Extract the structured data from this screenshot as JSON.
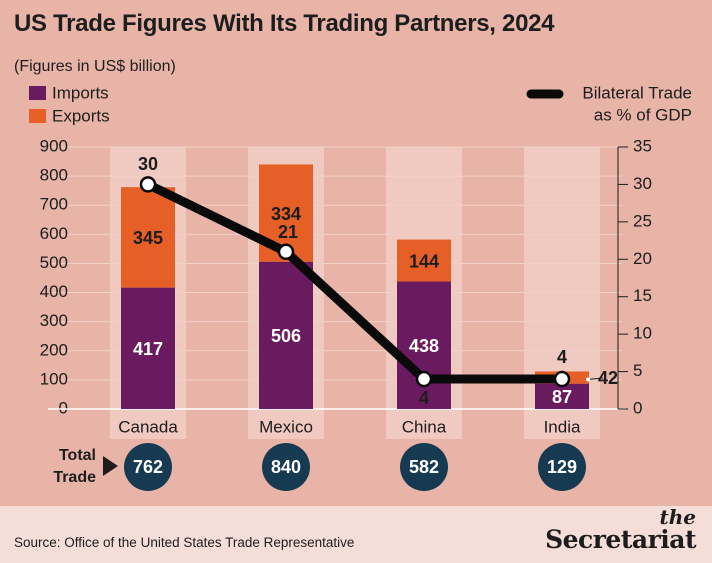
{
  "title": "US Trade Figures With Its Trading Partners, 2024",
  "subtitle": "(Figures in US$ billion)",
  "colors": {
    "background": "#e8b4a8",
    "imports": "#6a1a5e",
    "exports": "#e65f27",
    "line": "#0a0a0a",
    "badge": "#163a52",
    "column_band": "#f0c9c0",
    "footer": "#f4ded7"
  },
  "chart_data": {
    "type": "bar",
    "stacked": true,
    "categories": [
      "Canada",
      "Mexico",
      "China",
      "India"
    ],
    "series": [
      {
        "name": "Imports",
        "values": [
          417,
          506,
          438,
          87
        ]
      },
      {
        "name": "Exports",
        "values": [
          345,
          334,
          144,
          42
        ]
      }
    ],
    "line_series": {
      "name": "Bilateral Trade as % of GDP",
      "values": [
        30,
        21,
        4,
        4
      ],
      "axis": "right"
    },
    "totals_label": "Total Trade",
    "totals": [
      762,
      840,
      582,
      129
    ],
    "ylim_left": [
      0,
      900
    ],
    "yticks_left": [
      0,
      100,
      200,
      300,
      400,
      500,
      600,
      700,
      800,
      900
    ],
    "ylim_right": [
      0,
      35
    ],
    "yticks_right": [
      0,
      5,
      10,
      15,
      20,
      25,
      30,
      35
    ],
    "legend_left": [
      "Imports",
      "Exports"
    ],
    "legend_right": [
      "Bilateral Trade",
      "as % of GDP"
    ],
    "legend_placement": "top"
  },
  "footer": {
    "source": "Source: Office of the United States Trade Representative",
    "brand_the": "the",
    "brand_name": "Secretariat"
  }
}
